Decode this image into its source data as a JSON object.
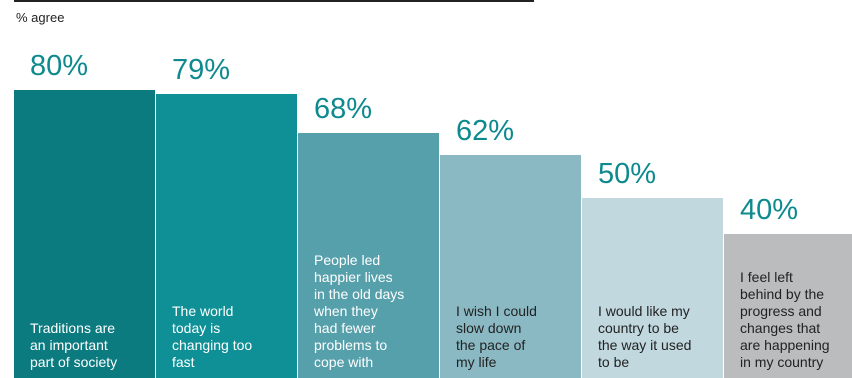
{
  "chart_data": {
    "type": "bar",
    "ylabel": "% agree",
    "categories": [
      "Traditions are\nan important\npart of society",
      "The world\ntoday is\nchanging too\nfast",
      "People led\nhappier lives\nin the old days\nwhen they\nhad fewer\nproblems to\ncope with",
      "I wish I could\nslow down\nthe pace of\nmy life",
      "I would like my\ncountry to be\nthe way it used\nto be",
      "I feel left\nbehind by the\nprogress and\nchanges that\nare happening\nin my country"
    ],
    "values": [
      80,
      79,
      68,
      62,
      50,
      40
    ],
    "value_labels": [
      "80%",
      "79%",
      "68%",
      "62%",
      "50%",
      "40%"
    ],
    "colors": [
      "#0c7b80",
      "#0e9096",
      "#56a0ab",
      "#8ab9c4",
      "#c1d8df",
      "#babcbe"
    ],
    "label_colors": [
      "#ffffff",
      "#ffffff",
      "#ffffff",
      "#222222",
      "#222222",
      "#222222"
    ],
    "ylim": [
      0,
      100
    ]
  }
}
